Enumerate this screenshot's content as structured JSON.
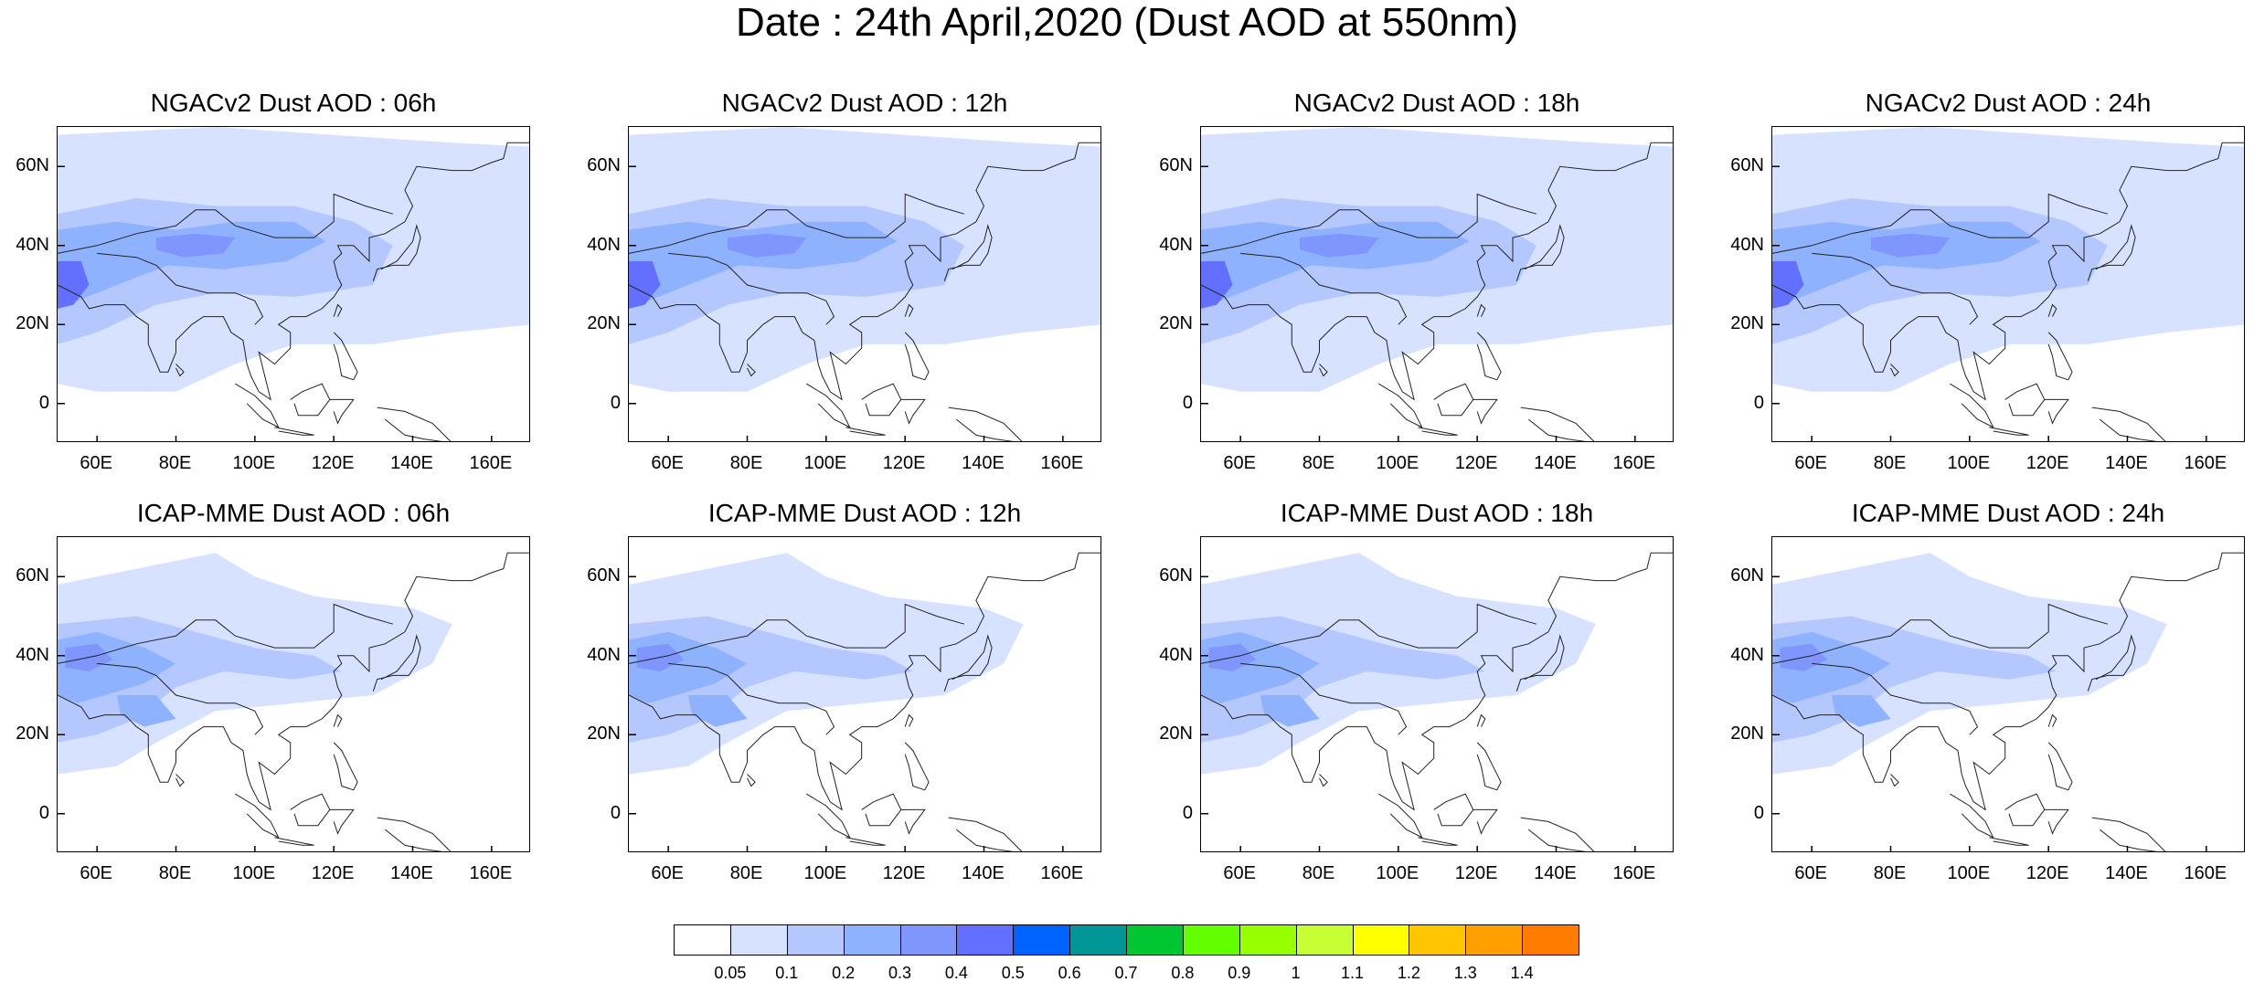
{
  "title": "Date : 24th April,2020 (Dust AOD at 550nm)",
  "panels": [
    {
      "title": "NGACv2 Dust AOD : 06h",
      "model": "NGACv2",
      "hour": "06h"
    },
    {
      "title": "NGACv2 Dust AOD : 12h",
      "model": "NGACv2",
      "hour": "12h"
    },
    {
      "title": "NGACv2 Dust AOD : 18h",
      "model": "NGACv2",
      "hour": "18h"
    },
    {
      "title": "NGACv2 Dust AOD : 24h",
      "model": "NGACv2",
      "hour": "24h"
    },
    {
      "title": "ICAP-MME Dust AOD : 06h",
      "model": "ICAP-MME",
      "hour": "06h"
    },
    {
      "title": "ICAP-MME Dust AOD : 12h",
      "model": "ICAP-MME",
      "hour": "12h"
    },
    {
      "title": "ICAP-MME Dust AOD : 18h",
      "model": "ICAP-MME",
      "hour": "18h"
    },
    {
      "title": "ICAP-MME Dust AOD : 24h",
      "model": "ICAP-MME",
      "hour": "24h"
    }
  ],
  "axes": {
    "lon_range": [
      50,
      170
    ],
    "lat_range": [
      -10,
      70
    ],
    "x_ticks": [
      "60E",
      "80E",
      "100E",
      "120E",
      "140E",
      "160E"
    ],
    "x_tick_values": [
      60,
      80,
      100,
      120,
      140,
      160
    ],
    "y_ticks": [
      "60N",
      "40N",
      "20N",
      "0"
    ],
    "y_tick_values": [
      60,
      40,
      20,
      0
    ]
  },
  "colorbar": {
    "labels": [
      "0.05",
      "0.1",
      "0.2",
      "0.3",
      "0.4",
      "0.5",
      "0.6",
      "0.7",
      "0.8",
      "0.9",
      "1",
      "1.1",
      "1.2",
      "1.3",
      "1.4"
    ],
    "colors": [
      "#ffffff",
      "#d6e2ff",
      "#b5c7ff",
      "#8fb2ff",
      "#7f96ff",
      "#6370ff",
      "#0063ff",
      "#009696",
      "#00c633",
      "#63ff00",
      "#96ff00",
      "#c6ff33",
      "#ffff00",
      "#ffc600",
      "#ffa000",
      "#ff7c00",
      "#ff1900"
    ]
  },
  "chart_data": {
    "type": "heatmap",
    "variable": "Dust AOD at 550nm",
    "bins": [
      0.05,
      0.1,
      0.2,
      0.3,
      0.4,
      0.5,
      0.6,
      0.7,
      0.8,
      0.9,
      1,
      1.1,
      1.2,
      1.3,
      1.4
    ],
    "lon_range": [
      50,
      170
    ],
    "lat_range": [
      -10,
      70
    ]
  }
}
